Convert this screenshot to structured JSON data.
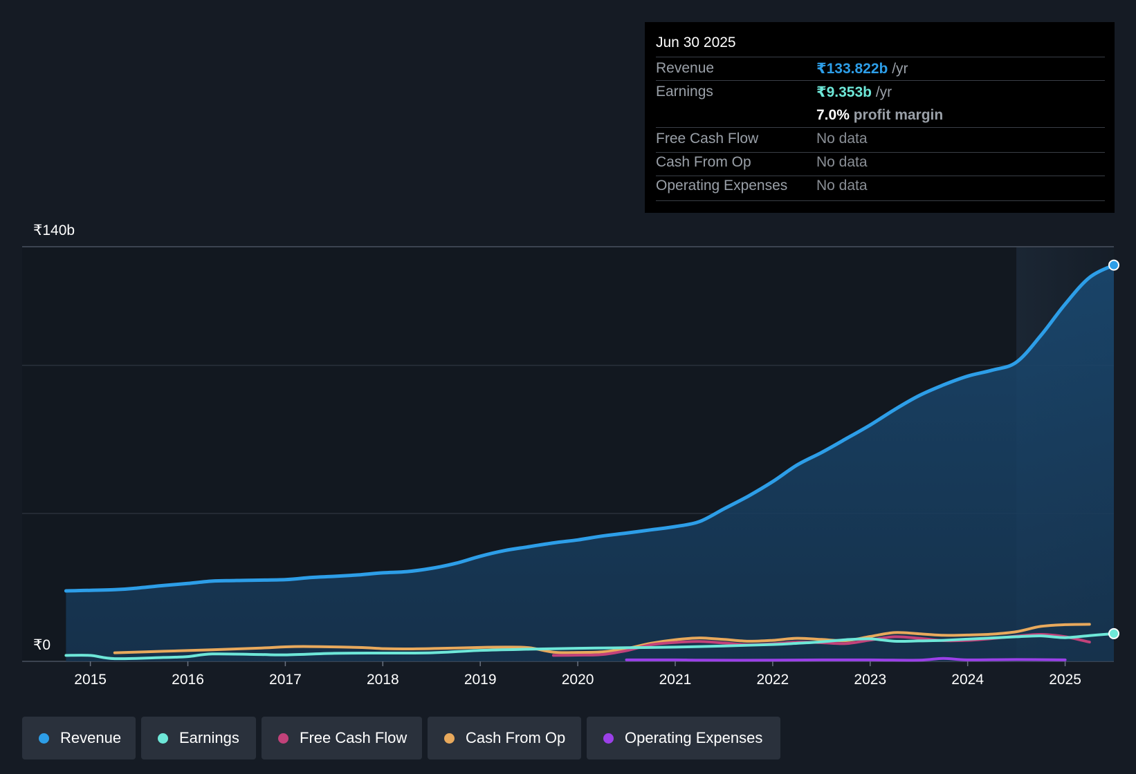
{
  "tooltip": {
    "date": "Jun 30 2025",
    "rows": [
      {
        "label": "Revenue",
        "value": "₹133.822b",
        "unit": " /yr",
        "color": "#2d9ee8"
      },
      {
        "label": "Earnings",
        "value": "₹9.353b",
        "unit": " /yr",
        "color": "#6ee7d8"
      },
      {
        "label": "",
        "value": "7.0%",
        "unit": " profit margin",
        "color": "#ffffff"
      },
      {
        "label": "Free Cash Flow",
        "value": "No data"
      },
      {
        "label": "Cash From Op",
        "value": "No data"
      },
      {
        "label": "Operating Expenses",
        "value": "No data"
      }
    ]
  },
  "legend": [
    {
      "label": "Revenue",
      "color": "#2d9ee8"
    },
    {
      "label": "Earnings",
      "color": "#6ee7d8"
    },
    {
      "label": "Free Cash Flow",
      "color": "#c2427a"
    },
    {
      "label": "Cash From Op",
      "color": "#e8a95c"
    },
    {
      "label": "Operating Expenses",
      "color": "#9b40e8"
    }
  ],
  "chart_data": {
    "type": "line",
    "title": "",
    "xlabel": "",
    "ylabel": "",
    "y_min_label": "₹0",
    "y_max_label": "₹140b",
    "ylim": [
      0,
      140
    ],
    "xlim": [
      2014.3,
      2025.5
    ],
    "xticks": [
      2015,
      2016,
      2017,
      2018,
      2019,
      2020,
      2021,
      2022,
      2023,
      2024,
      2025
    ],
    "forecast_start": 2024.5,
    "series": [
      {
        "name": "Revenue",
        "color": "#2d9ee8",
        "fill": true,
        "end_marker": true,
        "points": [
          [
            2014.75,
            23.8
          ],
          [
            2015.25,
            24.2
          ],
          [
            2015.5,
            24.8
          ],
          [
            2015.75,
            25.6
          ],
          [
            2016.0,
            26.3
          ],
          [
            2016.25,
            27.1
          ],
          [
            2016.5,
            27.3
          ],
          [
            2017.0,
            27.6
          ],
          [
            2017.25,
            28.3
          ],
          [
            2017.5,
            28.7
          ],
          [
            2017.75,
            29.2
          ],
          [
            2018.0,
            29.9
          ],
          [
            2018.25,
            30.3
          ],
          [
            2018.5,
            31.4
          ],
          [
            2018.75,
            33.1
          ],
          [
            2019.0,
            35.5
          ],
          [
            2019.25,
            37.4
          ],
          [
            2019.5,
            38.7
          ],
          [
            2019.75,
            40.0
          ],
          [
            2020.0,
            41.0
          ],
          [
            2020.25,
            42.3
          ],
          [
            2020.5,
            43.3
          ],
          [
            2020.75,
            44.4
          ],
          [
            2021.0,
            45.5
          ],
          [
            2021.25,
            47.2
          ],
          [
            2021.5,
            51.5
          ],
          [
            2021.75,
            55.8
          ],
          [
            2022.0,
            60.7
          ],
          [
            2022.25,
            66.3
          ],
          [
            2022.5,
            70.5
          ],
          [
            2022.75,
            75.1
          ],
          [
            2023.0,
            79.8
          ],
          [
            2023.25,
            85.0
          ],
          [
            2023.5,
            89.7
          ],
          [
            2023.75,
            93.3
          ],
          [
            2024.0,
            96.3
          ],
          [
            2024.25,
            98.3
          ],
          [
            2024.5,
            101.0
          ],
          [
            2024.75,
            110.0
          ],
          [
            2025.0,
            120.6
          ],
          [
            2025.25,
            129.6
          ],
          [
            2025.5,
            133.8
          ]
        ]
      },
      {
        "name": "Cash From Op",
        "color": "#e8a95c",
        "fill": false,
        "end_marker": false,
        "points": [
          [
            2015.25,
            2.9
          ],
          [
            2015.75,
            3.4
          ],
          [
            2016.25,
            3.9
          ],
          [
            2016.75,
            4.5
          ],
          [
            2017.0,
            4.9
          ],
          [
            2017.25,
            5.0
          ],
          [
            2017.75,
            4.7
          ],
          [
            2018.0,
            4.3
          ],
          [
            2018.25,
            4.2
          ],
          [
            2018.75,
            4.5
          ],
          [
            2019.0,
            4.7
          ],
          [
            2019.25,
            4.8
          ],
          [
            2019.5,
            4.6
          ],
          [
            2019.75,
            3.1
          ],
          [
            2020.0,
            3.0
          ],
          [
            2020.25,
            3.2
          ],
          [
            2020.5,
            4.3
          ],
          [
            2020.75,
            6.1
          ],
          [
            2021.0,
            7.3
          ],
          [
            2021.25,
            7.9
          ],
          [
            2021.5,
            7.4
          ],
          [
            2021.75,
            6.8
          ],
          [
            2022.0,
            7.1
          ],
          [
            2022.25,
            7.8
          ],
          [
            2022.5,
            7.4
          ],
          [
            2022.75,
            7.0
          ],
          [
            2023.0,
            8.4
          ],
          [
            2023.25,
            9.7
          ],
          [
            2023.5,
            9.3
          ],
          [
            2023.75,
            8.8
          ],
          [
            2024.0,
            8.9
          ],
          [
            2024.25,
            9.2
          ],
          [
            2024.5,
            10.0
          ],
          [
            2024.75,
            11.8
          ],
          [
            2025.0,
            12.4
          ],
          [
            2025.25,
            12.5
          ]
        ]
      },
      {
        "name": "Free Cash Flow",
        "color": "#c2427a",
        "fill": false,
        "end_marker": false,
        "points": [
          [
            2019.75,
            2.0
          ],
          [
            2020.0,
            2.1
          ],
          [
            2020.25,
            2.3
          ],
          [
            2020.5,
            3.6
          ],
          [
            2020.75,
            5.6
          ],
          [
            2021.0,
            6.4
          ],
          [
            2021.25,
            6.7
          ],
          [
            2021.5,
            6.2
          ],
          [
            2021.75,
            5.6
          ],
          [
            2022.0,
            5.9
          ],
          [
            2022.25,
            6.5
          ],
          [
            2022.5,
            6.3
          ],
          [
            2022.75,
            6.0
          ],
          [
            2023.0,
            7.2
          ],
          [
            2023.25,
            8.3
          ],
          [
            2023.5,
            7.8
          ],
          [
            2023.75,
            7.0
          ],
          [
            2024.0,
            7.1
          ],
          [
            2024.25,
            7.7
          ],
          [
            2024.5,
            8.5
          ],
          [
            2024.75,
            9.1
          ],
          [
            2025.0,
            8.3
          ],
          [
            2025.25,
            6.5
          ]
        ]
      },
      {
        "name": "Earnings",
        "color": "#6ee7d8",
        "fill": false,
        "end_marker": true,
        "points": [
          [
            2014.75,
            2.0
          ],
          [
            2015.0,
            2.0
          ],
          [
            2015.25,
            0.9
          ],
          [
            2015.75,
            1.3
          ],
          [
            2016.0,
            1.6
          ],
          [
            2016.25,
            2.5
          ],
          [
            2016.75,
            2.3
          ],
          [
            2017.0,
            2.2
          ],
          [
            2017.5,
            2.7
          ],
          [
            2018.0,
            2.8
          ],
          [
            2018.5,
            2.9
          ],
          [
            2019.0,
            3.7
          ],
          [
            2019.5,
            4.1
          ],
          [
            2020.0,
            4.4
          ],
          [
            2020.5,
            4.6
          ],
          [
            2020.75,
            4.7
          ],
          [
            2021.0,
            4.8
          ],
          [
            2021.25,
            5.0
          ],
          [
            2021.5,
            5.2
          ],
          [
            2022.0,
            5.7
          ],
          [
            2022.25,
            6.1
          ],
          [
            2022.5,
            6.6
          ],
          [
            2022.75,
            7.3
          ],
          [
            2023.0,
            7.6
          ],
          [
            2023.25,
            6.8
          ],
          [
            2023.5,
            6.9
          ],
          [
            2023.75,
            7.1
          ],
          [
            2024.0,
            7.5
          ],
          [
            2024.25,
            7.9
          ],
          [
            2024.5,
            8.3
          ],
          [
            2024.75,
            8.6
          ],
          [
            2025.0,
            8.0
          ],
          [
            2025.25,
            8.7
          ],
          [
            2025.5,
            9.353
          ]
        ]
      },
      {
        "name": "Operating Expenses",
        "color": "#9b40e8",
        "fill": false,
        "end_marker": false,
        "points": [
          [
            2020.5,
            0.5
          ],
          [
            2021.0,
            0.5
          ],
          [
            2021.25,
            0.4
          ],
          [
            2022.0,
            0.4
          ],
          [
            2022.5,
            0.5
          ],
          [
            2023.0,
            0.5
          ],
          [
            2023.5,
            0.4
          ],
          [
            2023.75,
            1.0
          ],
          [
            2024.0,
            0.5
          ],
          [
            2024.5,
            0.6
          ],
          [
            2025.0,
            0.5
          ]
        ]
      }
    ]
  }
}
